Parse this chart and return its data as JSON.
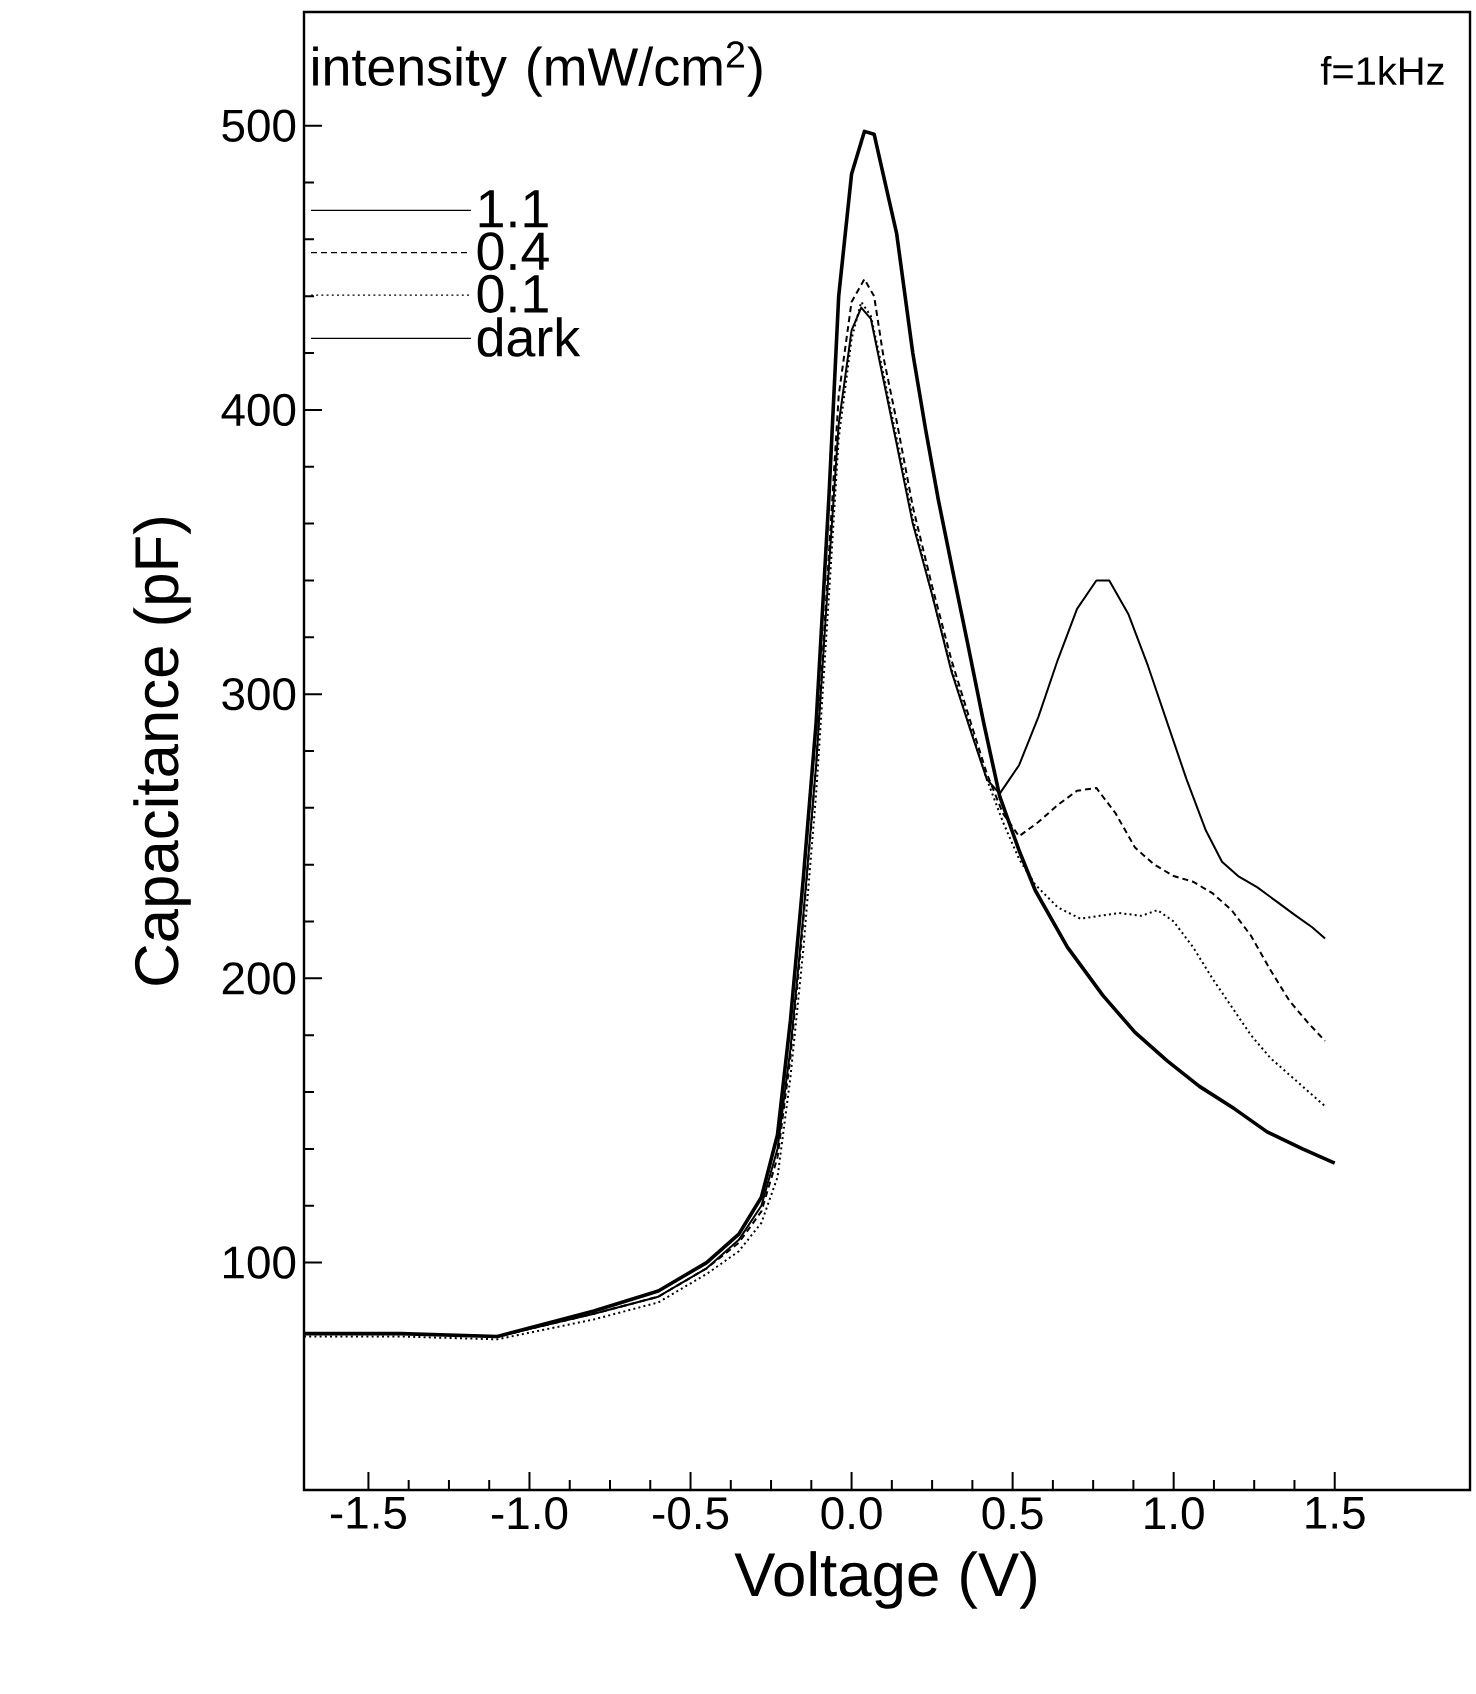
{
  "chart_data": {
    "type": "line",
    "xlabel": "Voltage (V)",
    "ylabel": "Capacitance (pF)",
    "legend_title": "intensity (mW/cm$^{2}$)",
    "legend": "top left",
    "grid": false,
    "marker": "none",
    "annotations": [
      "f=1kHz"
    ],
    "xlim": [
      -1.7,
      1.92
    ],
    "ylim": [
      20,
      540
    ],
    "xticks": [
      {
        "value": -1.5,
        "label": "-1.5"
      },
      {
        "value": -1.0,
        "label": "-1.0"
      },
      {
        "value": -0.5,
        "label": "-0.5"
      },
      {
        "value": 0.0,
        "label": "0.0"
      },
      {
        "value": 0.5,
        "label": "0.5"
      },
      {
        "value": 1.0,
        "label": "1.0"
      },
      {
        "value": 1.5,
        "label": "1.5"
      }
    ],
    "yticks": [
      100,
      200,
      300,
      400,
      500
    ],
    "series": [
      {
        "name": "1.1",
        "color": "#000000",
        "line_style": "solid",
        "x": [
          -1.7,
          -1.4,
          -1.1,
          -0.8,
          -0.6,
          -0.45,
          -0.35,
          -0.28,
          -0.23,
          -0.19,
          -0.15,
          -0.11,
          -0.07,
          -0.04,
          0.0,
          0.03,
          0.06,
          0.1,
          0.14,
          0.19,
          0.25,
          0.31,
          0.37,
          0.42,
          0.46,
          0.52,
          0.58,
          0.64,
          0.7,
          0.76,
          0.8,
          0.86,
          0.92,
          0.98,
          1.04,
          1.1,
          1.15,
          1.2,
          1.26,
          1.32,
          1.38,
          1.43,
          1.47
        ],
        "values": [
          75,
          75,
          74,
          82,
          88,
          98,
          108,
          120,
          140,
          175,
          222,
          275,
          345,
          395,
          428,
          436,
          432,
          410,
          388,
          360,
          335,
          308,
          287,
          270,
          265,
          275,
          292,
          312,
          330,
          340,
          340,
          328,
          310,
          290,
          270,
          252,
          241,
          236,
          232,
          227,
          222,
          218,
          214
        ]
      },
      {
        "name": "0.4",
        "color": "#000000",
        "line_style": "dashed",
        "x": [
          -1.7,
          -1.4,
          -1.1,
          -0.8,
          -0.6,
          -0.45,
          -0.35,
          -0.28,
          -0.23,
          -0.19,
          -0.15,
          -0.11,
          -0.07,
          -0.04,
          0.0,
          0.04,
          0.07,
          0.1,
          0.14,
          0.19,
          0.25,
          0.31,
          0.37,
          0.42,
          0.47,
          0.52,
          0.58,
          0.64,
          0.7,
          0.76,
          0.82,
          0.88,
          0.94,
          1.0,
          1.06,
          1.12,
          1.18,
          1.24,
          1.3,
          1.36,
          1.42,
          1.47
        ],
        "values": [
          75,
          75,
          74,
          82,
          88,
          98,
          107,
          118,
          137,
          172,
          220,
          275,
          350,
          405,
          438,
          446,
          440,
          418,
          396,
          366,
          338,
          312,
          290,
          272,
          258,
          250,
          255,
          261,
          266,
          267,
          258,
          246,
          240,
          236,
          234,
          230,
          224,
          215,
          203,
          192,
          184,
          178
        ]
      },
      {
        "name": "0.1",
        "color": "#000000",
        "line_style": "dotted",
        "x": [
          -1.7,
          -1.4,
          -1.1,
          -0.8,
          -0.6,
          -0.45,
          -0.35,
          -0.28,
          -0.23,
          -0.19,
          -0.15,
          -0.11,
          -0.07,
          -0.04,
          0.0,
          0.03,
          0.06,
          0.1,
          0.14,
          0.19,
          0.25,
          0.31,
          0.37,
          0.42,
          0.47,
          0.52,
          0.57,
          0.64,
          0.71,
          0.77,
          0.83,
          0.9,
          0.95,
          1.0,
          1.06,
          1.12,
          1.18,
          1.24,
          1.3,
          1.36,
          1.42,
          1.47
        ],
        "values": [
          74,
          74,
          73,
          80,
          86,
          96,
          104,
          114,
          130,
          165,
          210,
          265,
          335,
          390,
          425,
          438,
          433,
          412,
          390,
          362,
          335,
          309,
          288,
          270,
          255,
          242,
          233,
          225,
          221,
          222,
          223,
          222,
          224,
          220,
          211,
          200,
          190,
          180,
          172,
          166,
          160,
          155
        ]
      },
      {
        "name": "dark",
        "color": "#000000",
        "line_style": "solid",
        "x": [
          -1.7,
          -1.4,
          -1.1,
          -0.8,
          -0.6,
          -0.45,
          -0.35,
          -0.28,
          -0.23,
          -0.19,
          -0.15,
          -0.11,
          -0.07,
          -0.04,
          0.0,
          0.04,
          0.07,
          0.1,
          0.14,
          0.19,
          0.23,
          0.27,
          0.32,
          0.36,
          0.41,
          0.46,
          0.52,
          0.57,
          0.67,
          0.78,
          0.88,
          0.98,
          1.08,
          1.19,
          1.29,
          1.4,
          1.5
        ],
        "values": [
          75,
          75,
          74,
          83,
          90,
          100,
          110,
          123,
          145,
          185,
          235,
          290,
          370,
          440,
          483,
          498,
          497,
          482,
          462,
          420,
          393,
          368,
          340,
          318,
          290,
          264,
          245,
          231,
          211,
          194,
          181,
          171,
          162,
          154,
          146,
          140,
          135
        ]
      }
    ]
  }
}
